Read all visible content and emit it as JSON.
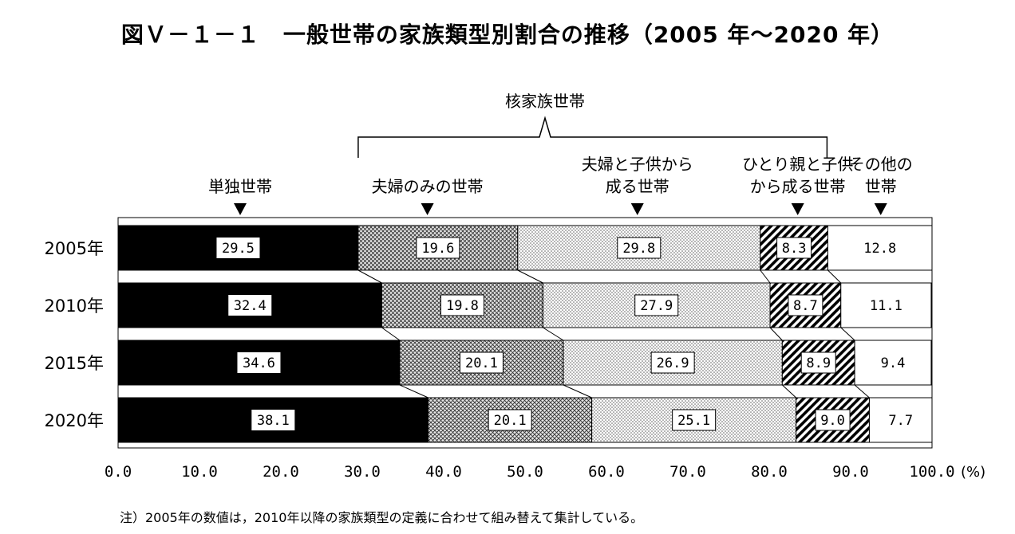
{
  "title": "図Ｖ－１－１　一般世帯の家族類型別割合の推移（2005 年～2020 年）",
  "note": "注）2005年の数値は，2010年以降の家族類型の定義に合わせて組み替えて集計している。",
  "chart_data": {
    "type": "bar",
    "orientation": "horizontal",
    "stacked": true,
    "categories": [
      "2005年",
      "2010年",
      "2015年",
      "2020年"
    ],
    "series": [
      {
        "name": "単独世帯",
        "values": [
          29.5,
          32.4,
          34.6,
          38.1
        ],
        "fill": "solid-black"
      },
      {
        "name": "夫婦のみの世帯",
        "values": [
          19.6,
          19.8,
          20.1,
          20.1
        ],
        "fill": "crosshatch"
      },
      {
        "name": "夫婦と子供から成る世帯",
        "values": [
          29.8,
          27.9,
          26.9,
          25.1
        ],
        "fill": "dots"
      },
      {
        "name": "ひとり親と子供から成る世帯",
        "values": [
          8.3,
          8.7,
          8.9,
          9.0
        ],
        "fill": "diagonal-stripes"
      },
      {
        "name": "その他の世帯",
        "values": [
          12.8,
          11.1,
          9.4,
          7.7
        ],
        "fill": "white"
      }
    ],
    "series_labels": [
      [
        "単独世帯"
      ],
      [
        "夫婦のみの世帯"
      ],
      [
        "夫婦と子供から",
        "成る世帯"
      ],
      [
        "ひとり親と子供",
        "から成る世帯"
      ],
      [
        "その他の",
        "世帯"
      ]
    ],
    "group_label": "核家族世帯",
    "x_ticks": [
      "0.0",
      "10.0",
      "20.0",
      "30.0",
      "40.0",
      "50.0",
      "60.0",
      "70.0",
      "80.0",
      "90.0",
      "100.0"
    ],
    "x_unit": "(%)",
    "xlim": [
      0,
      100
    ],
    "value_labels": [
      [
        "29.5",
        "19.6",
        "29.8",
        "8.3",
        "12.8"
      ],
      [
        "32.4",
        "19.8",
        "27.9",
        "8.7",
        "11.1"
      ],
      [
        "34.6",
        "20.1",
        "26.9",
        "8.9",
        "9.4"
      ],
      [
        "38.1",
        "20.1",
        "25.1",
        "9.0",
        "7.7"
      ]
    ],
    "marker_x": [
      15,
      38,
      63.8,
      83.5,
      93.7
    ],
    "brace_range": [
      29.5,
      87.1
    ],
    "legend": "labels-above-bars"
  }
}
